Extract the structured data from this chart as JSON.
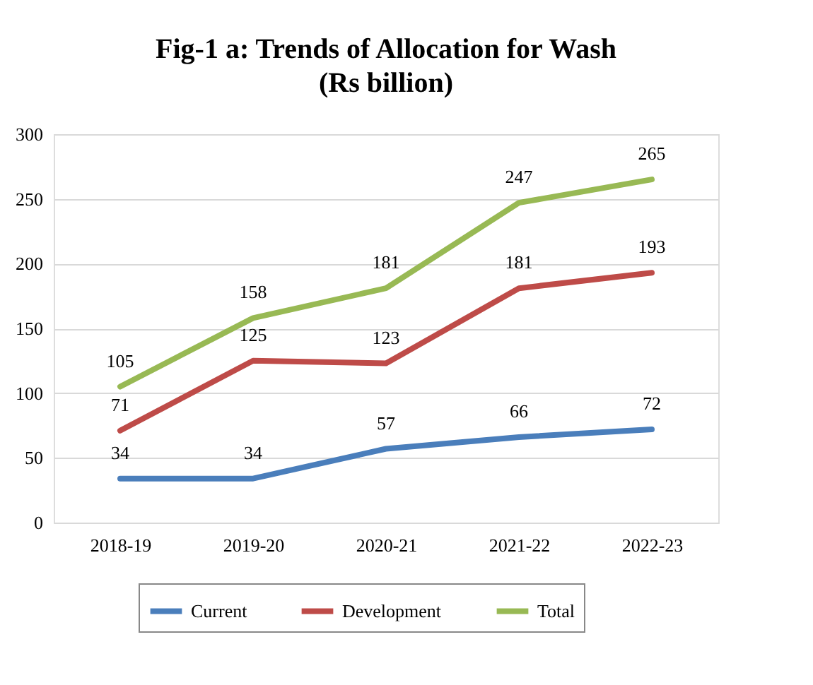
{
  "chart_data": {
    "type": "line",
    "title": "Fig-1 a: Trends of Allocation for Wash",
    "subtitle": "(Rs billion)",
    "categories": [
      "2018-19",
      "2019-20",
      "2020-21",
      "2021-22",
      "2022-23"
    ],
    "series": [
      {
        "name": "Current",
        "color": "#4a7ebb",
        "values": [
          34,
          34,
          57,
          66,
          72
        ]
      },
      {
        "name": "Development",
        "color": "#be4b48",
        "values": [
          71,
          125,
          123,
          181,
          193
        ]
      },
      {
        "name": "Total",
        "color": "#98b954",
        "values": [
          105,
          158,
          181,
          247,
          265
        ]
      }
    ],
    "ylim": [
      0,
      300
    ],
    "yticks": [
      0,
      50,
      100,
      150,
      200,
      250,
      300
    ],
    "grid": "y",
    "legend": "bottom",
    "data_labels": true,
    "marker": "none",
    "line_style": "solid"
  }
}
